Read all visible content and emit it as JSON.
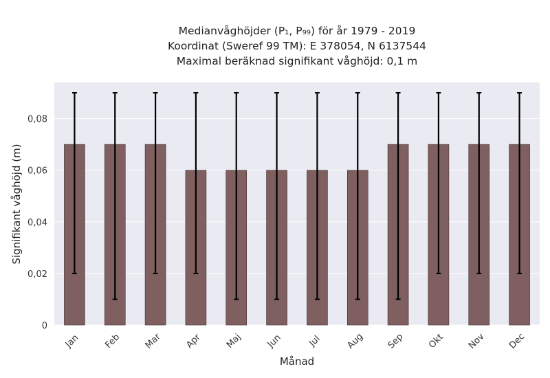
{
  "chart_data": {
    "type": "bar",
    "title_lines": [
      "Medianvåghöjder (P₁, P₉₉) för år 1979 - 2019",
      "Koordinat (Sweref 99 TM): E 378054, N 6137544",
      "Maximal beräknad signifikant våghöjd: 0,1 m"
    ],
    "xlabel": "Månad",
    "ylabel": "Signifikant våghöjd (m)",
    "categories": [
      "Jan",
      "Feb",
      "Mar",
      "Apr",
      "Maj",
      "Jun",
      "Jul",
      "Aug",
      "Sep",
      "Okt",
      "Nov",
      "Dec"
    ],
    "values": [
      0.07,
      0.07,
      0.07,
      0.06,
      0.06,
      0.06,
      0.06,
      0.06,
      0.07,
      0.07,
      0.07,
      0.07
    ],
    "err_low": [
      0.02,
      0.01,
      0.02,
      0.02,
      0.01,
      0.01,
      0.01,
      0.01,
      0.01,
      0.02,
      0.02,
      0.02
    ],
    "err_high": [
      0.09,
      0.09,
      0.09,
      0.09,
      0.09,
      0.09,
      0.09,
      0.09,
      0.09,
      0.09,
      0.09,
      0.09
    ],
    "ylim": [
      0,
      0.094
    ],
    "yticks": [
      0,
      0.02,
      0.04,
      0.06,
      0.08
    ],
    "ytick_labels": [
      "0",
      "0,02",
      "0,04",
      "0,06",
      "0,08"
    ],
    "grid": true,
    "colors": {
      "bar": "#7f5f5f",
      "plot_bg": "#eaeaf2",
      "grid": "#ffffff",
      "error": "#000000"
    }
  }
}
